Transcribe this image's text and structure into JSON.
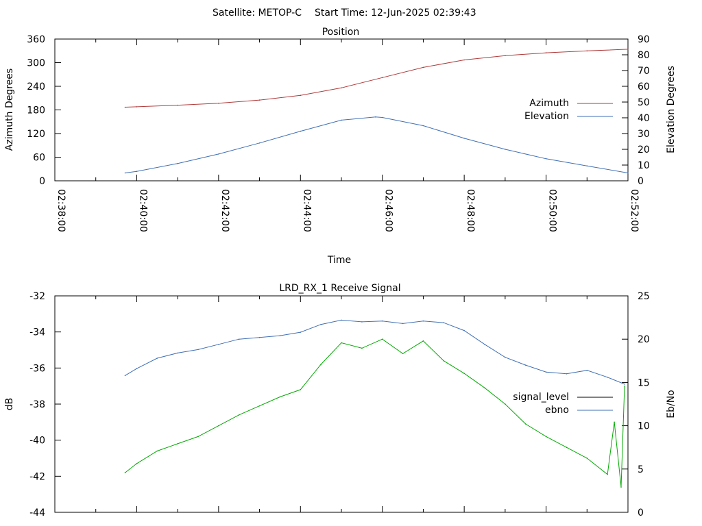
{
  "header": {
    "satellite_label": "Satellite: METOP-C",
    "start_time_label": "Start Time: 12-Jun-2025 02:39:43"
  },
  "chart_data": [
    {
      "type": "line",
      "title": "Position",
      "xlabel": "Time",
      "ylabel": "Azimuth Degrees",
      "y2label": "Elevation Degrees",
      "xlim": [
        "02:38:00",
        "02:52:00"
      ],
      "ylim": [
        0,
        360
      ],
      "y2lim": [
        0,
        90
      ],
      "x_ticks": [
        "02:38:00",
        "02:40:00",
        "02:42:00",
        "02:44:00",
        "02:46:00",
        "02:48:00",
        "02:50:00",
        "02:52:00"
      ],
      "y_ticks": [
        "0",
        "60",
        "120",
        "180",
        "240",
        "300",
        "360"
      ],
      "y2_ticks": [
        "0",
        "10",
        "20",
        "30",
        "40",
        "50",
        "60",
        "70",
        "80",
        "90"
      ],
      "legend_position": "right",
      "grid": false,
      "series": [
        {
          "name": "Azimuth",
          "axis": "y",
          "color": "#b03a3a",
          "points": [
            [
              "02:39:43",
              187
            ],
            [
              "02:40:00",
              188
            ],
            [
              "02:41:00",
              192
            ],
            [
              "02:42:00",
              197
            ],
            [
              "02:43:00",
              205
            ],
            [
              "02:44:00",
              217
            ],
            [
              "02:45:00",
              236
            ],
            [
              "02:46:00",
              262
            ],
            [
              "02:47:00",
              288
            ],
            [
              "02:48:00",
              307
            ],
            [
              "02:49:00",
              318
            ],
            [
              "02:50:00",
              325
            ],
            [
              "02:51:00",
              330
            ],
            [
              "02:52:00",
              334
            ]
          ]
        },
        {
          "name": "Elevation",
          "axis": "y2",
          "color": "#3f6fb5",
          "points": [
            [
              "02:39:43",
              5
            ],
            [
              "02:40:00",
              6
            ],
            [
              "02:41:00",
              11
            ],
            [
              "02:42:00",
              17
            ],
            [
              "02:43:00",
              24
            ],
            [
              "02:44:00",
              31.5
            ],
            [
              "02:45:00",
              38.5
            ],
            [
              "02:45:50",
              40.5
            ],
            [
              "02:46:00",
              40.2
            ],
            [
              "02:47:00",
              35
            ],
            [
              "02:48:00",
              27
            ],
            [
              "02:49:00",
              20
            ],
            [
              "02:50:00",
              14
            ],
            [
              "02:51:00",
              9.5
            ],
            [
              "02:52:00",
              5
            ]
          ]
        }
      ]
    },
    {
      "type": "line",
      "title": "LRD_RX_1 Receive Signal",
      "xlabel": "",
      "ylabel": "dB",
      "y2label": "Eb/No",
      "xlim": [
        "02:38:00",
        "02:52:00"
      ],
      "ylim": [
        -44,
        -32
      ],
      "y2lim": [
        0,
        25
      ],
      "y_ticks": [
        "-44",
        "-42",
        "-40",
        "-38",
        "-36",
        "-34",
        "-32"
      ],
      "y2_ticks": [
        "0",
        "5",
        "10",
        "15",
        "20",
        "25"
      ],
      "legend_position": "right",
      "grid": false,
      "series": [
        {
          "name": "signal_level",
          "axis": "y",
          "color": "#00aa00",
          "legend_color": "#000000",
          "points": [
            [
              "02:39:43",
              -41.8
            ],
            [
              "02:40:00",
              -41.3
            ],
            [
              "02:40:30",
              -40.6
            ],
            [
              "02:41:00",
              -40.2
            ],
            [
              "02:41:30",
              -39.8
            ],
            [
              "02:42:00",
              -39.2
            ],
            [
              "02:42:30",
              -38.6
            ],
            [
              "02:43:00",
              -38.1
            ],
            [
              "02:43:30",
              -37.6
            ],
            [
              "02:44:00",
              -37.2
            ],
            [
              "02:44:30",
              -35.8
            ],
            [
              "02:45:00",
              -34.6
            ],
            [
              "02:45:30",
              -34.9
            ],
            [
              "02:46:00",
              -34.4
            ],
            [
              "02:46:30",
              -35.2
            ],
            [
              "02:47:00",
              -34.5
            ],
            [
              "02:47:30",
              -35.6
            ],
            [
              "02:48:00",
              -36.3
            ],
            [
              "02:48:30",
              -37.1
            ],
            [
              "02:49:00",
              -38.0
            ],
            [
              "02:49:30",
              -39.1
            ],
            [
              "02:50:00",
              -39.8
            ],
            [
              "02:50:30",
              -40.4
            ],
            [
              "02:51:00",
              -41.0
            ],
            [
              "02:51:30",
              -41.9
            ],
            [
              "02:51:40",
              -39.0
            ],
            [
              "02:51:50",
              -42.6
            ],
            [
              "02:51:55",
              -37.0
            ]
          ]
        },
        {
          "name": "ebno",
          "axis": "y2",
          "color": "#3f6fb5",
          "points": [
            [
              "02:39:43",
              15.8
            ],
            [
              "02:40:00",
              16.6
            ],
            [
              "02:40:30",
              17.8
            ],
            [
              "02:41:00",
              18.4
            ],
            [
              "02:41:30",
              18.8
            ],
            [
              "02:42:00",
              19.4
            ],
            [
              "02:42:30",
              20.0
            ],
            [
              "02:43:00",
              20.2
            ],
            [
              "02:43:30",
              20.4
            ],
            [
              "02:44:00",
              20.8
            ],
            [
              "02:44:30",
              21.7
            ],
            [
              "02:45:00",
              22.2
            ],
            [
              "02:45:30",
              22.0
            ],
            [
              "02:46:00",
              22.1
            ],
            [
              "02:46:30",
              21.8
            ],
            [
              "02:47:00",
              22.1
            ],
            [
              "02:47:30",
              21.9
            ],
            [
              "02:48:00",
              21.0
            ],
            [
              "02:48:30",
              19.4
            ],
            [
              "02:49:00",
              17.9
            ],
            [
              "02:49:30",
              17.0
            ],
            [
              "02:50:00",
              16.2
            ],
            [
              "02:50:30",
              16.0
            ],
            [
              "02:51:00",
              16.4
            ],
            [
              "02:51:30",
              15.6
            ],
            [
              "02:51:55",
              14.8
            ]
          ]
        }
      ]
    }
  ]
}
